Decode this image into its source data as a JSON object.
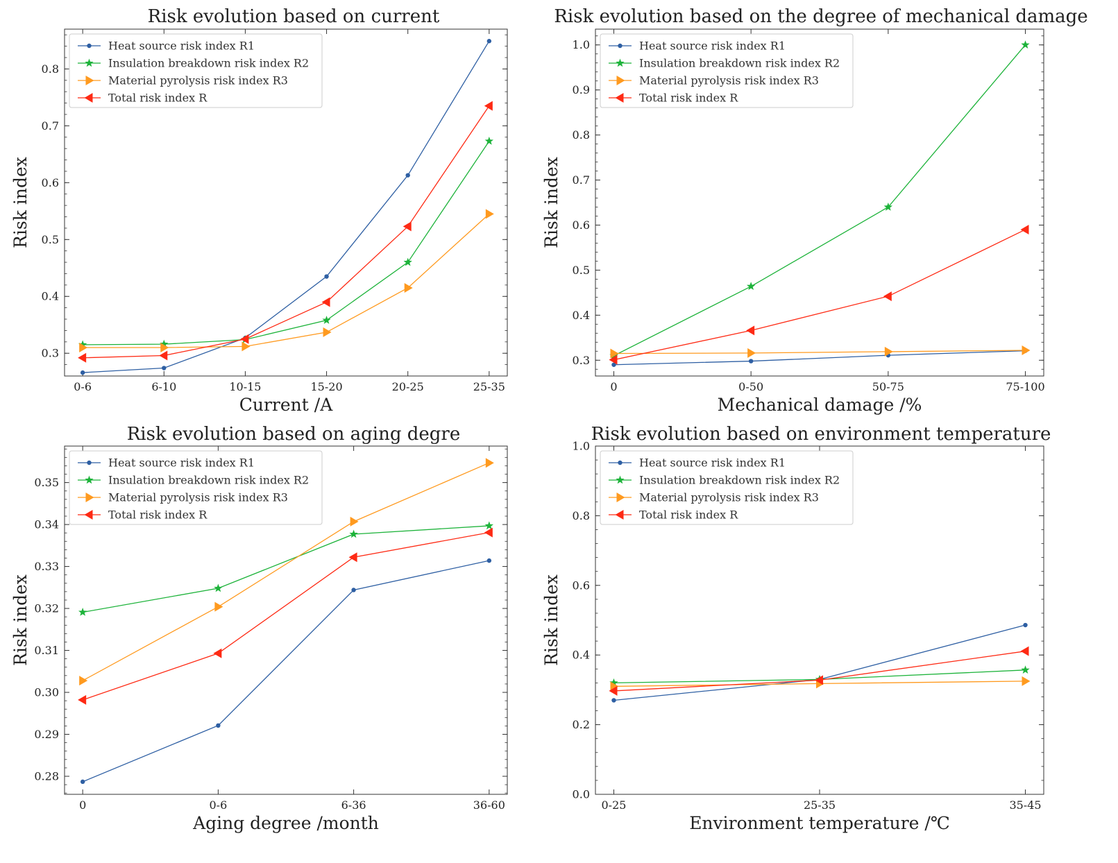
{
  "colors": {
    "R1": "#2e5fa3",
    "R2": "#1db33a",
    "R3": "#ff9a1f",
    "R": "#fe2a14"
  },
  "chart_data": [
    {
      "type": "line",
      "title": "Risk evolution based on current",
      "xlabel": "Current /A",
      "ylabel": "Risk index",
      "categories": [
        "0-6",
        "6-10",
        "10-15",
        "15-20",
        "20-25",
        "25-35"
      ],
      "ylim": [
        0.26,
        0.87
      ],
      "yticks": [
        "0.3",
        "0.4",
        "0.5",
        "0.6",
        "0.7",
        "0.8"
      ],
      "legend_position": "top-left",
      "series": [
        {
          "name": "Heat source risk index R1",
          "key": "R1",
          "marker": "circle",
          "values": [
            0.266,
            0.274,
            0.327,
            0.435,
            0.613,
            0.849
          ]
        },
        {
          "name": "Insulation breakdown risk index R2",
          "key": "R2",
          "marker": "star",
          "values": [
            0.315,
            0.316,
            0.324,
            0.358,
            0.46,
            0.673
          ]
        },
        {
          "name": "Material pyrolysis risk index R3",
          "key": "R3",
          "marker": "triangle-right",
          "values": [
            0.31,
            0.31,
            0.312,
            0.337,
            0.415,
            0.545
          ]
        },
        {
          "name": "Total risk index R",
          "key": "R",
          "marker": "triangle-left",
          "values": [
            0.292,
            0.296,
            0.325,
            0.39,
            0.523,
            0.735
          ]
        }
      ]
    },
    {
      "type": "line",
      "title": "Risk evolution based on the degree of mechanical damage",
      "xlabel": "Mechanical damage /%",
      "ylabel": "Risk index",
      "categories": [
        "0",
        "0-50",
        "50-75",
        "75-100"
      ],
      "ylim": [
        0.265,
        1.035
      ],
      "yticks": [
        "0.3",
        "0.4",
        "0.5",
        "0.6",
        "0.7",
        "0.8",
        "0.9",
        "1.0"
      ],
      "legend_position": "top-left",
      "series": [
        {
          "name": "Heat source risk index R1",
          "key": "R1",
          "marker": "circle",
          "values": [
            0.29,
            0.298,
            0.311,
            0.321
          ]
        },
        {
          "name": "Insulation breakdown risk index R2",
          "key": "R2",
          "marker": "star",
          "values": [
            0.31,
            0.464,
            0.64,
            1.0
          ]
        },
        {
          "name": "Material pyrolysis risk index R3",
          "key": "R3",
          "marker": "triangle-right",
          "values": [
            0.315,
            0.316,
            0.319,
            0.322
          ]
        },
        {
          "name": "Total risk index R",
          "key": "R",
          "marker": "triangle-left",
          "values": [
            0.301,
            0.366,
            0.442,
            0.59
          ]
        }
      ]
    },
    {
      "type": "line",
      "title": "Risk evolution based on aging degre",
      "xlabel": "Aging degree /month",
      "ylabel": "Risk index",
      "categories": [
        "0",
        "0-6",
        "6-36",
        "36-60"
      ],
      "ylim": [
        0.2757,
        0.3587
      ],
      "yticks": [
        "0.28",
        "0.29",
        "0.30",
        "0.31",
        "0.32",
        "0.33",
        "0.34",
        "0.35"
      ],
      "legend_position": "top-left",
      "series": [
        {
          "name": "Heat source risk index R1",
          "key": "R1",
          "marker": "circle",
          "values": [
            0.2787,
            0.2921,
            0.3244,
            0.3314
          ]
        },
        {
          "name": "Insulation breakdown risk index R2",
          "key": "R2",
          "marker": "star",
          "values": [
            0.3191,
            0.3248,
            0.3377,
            0.3397
          ]
        },
        {
          "name": "Material pyrolysis risk index R3",
          "key": "R3",
          "marker": "triangle-right",
          "values": [
            0.3028,
            0.3204,
            0.3407,
            0.3547
          ]
        },
        {
          "name": "Total risk index R",
          "key": "R",
          "marker": "triangle-left",
          "values": [
            0.2982,
            0.3093,
            0.3322,
            0.3381
          ]
        }
      ]
    },
    {
      "type": "line",
      "title": "Risk evolution based on environment temperature",
      "xlabel": "Environment temperature /℃",
      "ylabel": "Risk index",
      "categories": [
        "0-25",
        "25-35",
        "35-45"
      ],
      "ylim": [
        0.0,
        1.0
      ],
      "yticks": [
        "0.0",
        "0.2",
        "0.4",
        "0.6",
        "0.8",
        "1.0"
      ],
      "legend_position": "top-left",
      "series": [
        {
          "name": "Heat source risk index R1",
          "key": "R1",
          "marker": "circle",
          "values": [
            0.27,
            0.33,
            0.486
          ]
        },
        {
          "name": "Insulation breakdown risk index R2",
          "key": "R2",
          "marker": "star",
          "values": [
            0.32,
            0.33,
            0.357
          ]
        },
        {
          "name": "Material pyrolysis risk index R3",
          "key": "R3",
          "marker": "triangle-right",
          "values": [
            0.31,
            0.318,
            0.325
          ]
        },
        {
          "name": "Total risk index R",
          "key": "R",
          "marker": "triangle-left",
          "values": [
            0.297,
            0.328,
            0.411
          ]
        }
      ]
    }
  ]
}
